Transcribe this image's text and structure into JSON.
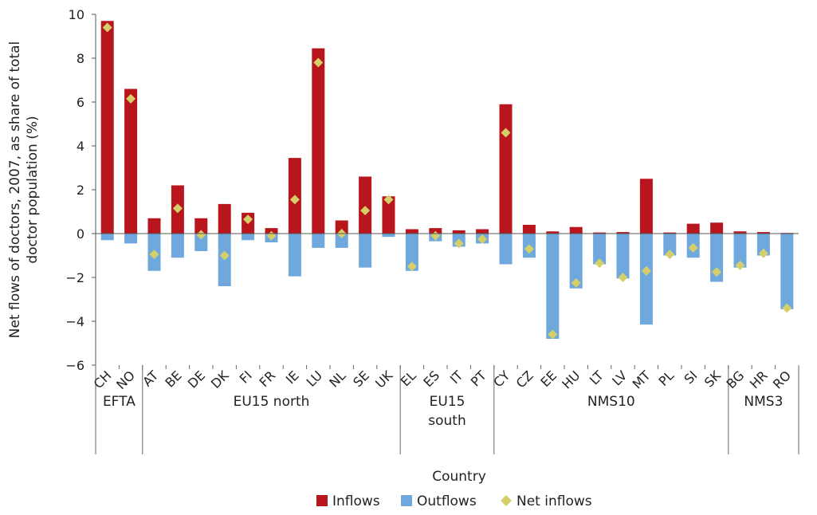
{
  "chart_data": {
    "type": "bar",
    "title": "",
    "ylabel": "Net flows of doctors, 2007, as share of total doctor population (%)",
    "ylabel_lines": [
      "Net flows of doctors, 2007, as share of total",
      "doctor population (%)"
    ],
    "xlabel": "Country",
    "ylim": [
      -6,
      10
    ],
    "yticks": [
      10,
      8,
      6,
      4,
      2,
      0,
      -2,
      -4,
      -6
    ],
    "ytick_labels": [
      "10",
      "8",
      "6",
      "4",
      "2",
      "0",
      "−2",
      "−4",
      "−6"
    ],
    "grid": false,
    "legend_position": "bottom-center",
    "categories": [
      "CH",
      "NO",
      "AT",
      "BE",
      "DE",
      "DK",
      "FI",
      "FR",
      "IE",
      "LU",
      "NL",
      "SE",
      "UK",
      "EL",
      "ES",
      "IT",
      "PT",
      "CY",
      "CZ",
      "EE",
      "HU",
      "LT",
      "LV",
      "MT",
      "PL",
      "SI",
      "SK",
      "BG",
      "HR",
      "RO"
    ],
    "groups": [
      {
        "lines": [
          "EFTA"
        ],
        "start": 0,
        "end": 1
      },
      {
        "lines": [
          "EU15 north"
        ],
        "start": 2,
        "end": 12
      },
      {
        "lines": [
          "EU15",
          "south"
        ],
        "start": 13,
        "end": 16
      },
      {
        "lines": [
          "NMS10"
        ],
        "start": 17,
        "end": 26
      },
      {
        "lines": [
          "NMS3"
        ],
        "start": 27,
        "end": 29
      }
    ],
    "series": [
      {
        "name": "Inflows",
        "kind": "bar",
        "color": "#b8151c",
        "values": [
          9.7,
          6.6,
          0.7,
          2.2,
          0.7,
          1.35,
          0.95,
          0.25,
          3.45,
          8.45,
          0.6,
          2.6,
          1.7,
          0.2,
          0.25,
          0.15,
          0.2,
          5.9,
          0.4,
          0.1,
          0.3,
          0.05,
          0.07,
          2.5,
          0.05,
          0.45,
          0.5,
          0.1,
          0.07,
          0.03
        ]
      },
      {
        "name": "Outflows",
        "kind": "bar",
        "color": "#6fa8dc",
        "values": [
          -0.3,
          -0.45,
          -1.7,
          -1.1,
          -0.8,
          -2.4,
          -0.3,
          -0.4,
          -1.95,
          -0.65,
          -0.65,
          -1.55,
          -0.15,
          -1.7,
          -0.35,
          -0.6,
          -0.45,
          -1.4,
          -1.1,
          -4.8,
          -2.5,
          -1.4,
          -2.05,
          -4.15,
          -1.0,
          -1.1,
          -2.2,
          -1.55,
          -1.0,
          -3.45
        ]
      },
      {
        "name": "Net inflows",
        "kind": "marker",
        "color": "#d4cf6a",
        "values": [
          9.4,
          6.15,
          -0.95,
          1.15,
          -0.05,
          -1.0,
          0.65,
          -0.1,
          1.55,
          7.8,
          0.0,
          1.05,
          1.55,
          -1.5,
          -0.1,
          -0.45,
          -0.25,
          4.6,
          -0.7,
          -4.6,
          -2.25,
          -1.35,
          -2.0,
          -1.7,
          -0.95,
          -0.65,
          -1.75,
          -1.45,
          -0.9,
          -3.4
        ]
      }
    ]
  }
}
